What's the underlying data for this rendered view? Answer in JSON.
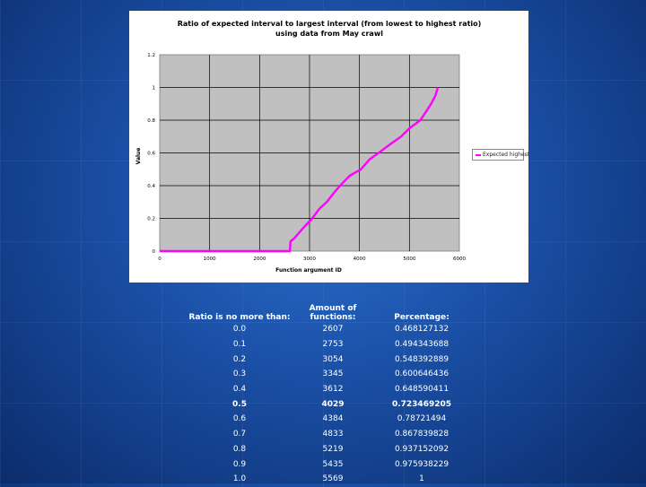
{
  "chart_data": {
    "type": "line",
    "title": "Ratio of expected interval to largest interval (from lowest to highest ratio) using data from May crawl",
    "title_lines": [
      "Ratio of expected interval to largest interval (from lowest to highest ratio)",
      "using data from May crawl"
    ],
    "xlabel": "Function argument ID",
    "ylabel": "Value",
    "xlim": [
      0,
      6000
    ],
    "ylim": [
      0,
      1.2
    ],
    "x_ticks": [
      "0",
      "1000",
      "2000",
      "3000",
      "4000",
      "5000",
      "6000"
    ],
    "y_ticks": [
      "0",
      "0.2",
      "0.4",
      "0.6",
      "0.8",
      "1",
      "1.2"
    ],
    "grid": true,
    "legend_position": "right",
    "series": [
      {
        "name": "Expected highest",
        "color": "#ff00ff",
        "points": [
          [
            0,
            0
          ],
          [
            2607,
            0
          ],
          [
            2620,
            0.06
          ],
          [
            2700,
            0.08
          ],
          [
            2753,
            0.1
          ],
          [
            2900,
            0.15
          ],
          [
            3054,
            0.2
          ],
          [
            3200,
            0.26
          ],
          [
            3345,
            0.3
          ],
          [
            3500,
            0.36
          ],
          [
            3612,
            0.4
          ],
          [
            3800,
            0.46
          ],
          [
            4029,
            0.5
          ],
          [
            4200,
            0.56
          ],
          [
            4384,
            0.6
          ],
          [
            4600,
            0.65
          ],
          [
            4833,
            0.7
          ],
          [
            5000,
            0.75
          ],
          [
            5219,
            0.8
          ],
          [
            5350,
            0.86
          ],
          [
            5435,
            0.9
          ],
          [
            5520,
            0.95
          ],
          [
            5569,
            1.0
          ]
        ]
      }
    ]
  },
  "table": {
    "headers": [
      "Ratio is no more than:",
      "Amount of functions:",
      "Percentage:"
    ],
    "rows": [
      [
        "0.0",
        "2607",
        "0.468127132"
      ],
      [
        "0.1",
        "2753",
        "0.494343688"
      ],
      [
        "0.2",
        "3054",
        "0.548392889"
      ],
      [
        "0.3",
        "3345",
        "0.600646436"
      ],
      [
        "0.4",
        "3612",
        "0.648590411"
      ],
      [
        "0.5",
        "4029",
        "0.723469205"
      ],
      [
        "0.6",
        "4384",
        "0.78721494"
      ],
      [
        "0.7",
        "4833",
        "0.867839828"
      ],
      [
        "0.8",
        "5219",
        "0.937152092"
      ],
      [
        "0.9",
        "5435",
        "0.975938229"
      ],
      [
        "1.0",
        "5569",
        "1"
      ]
    ],
    "highlight_row": 5
  },
  "colors": {
    "series": "#ff00ff",
    "plot_bg": "#c0c0c0",
    "gridline": "#000000",
    "table_text": "#ffffff"
  }
}
